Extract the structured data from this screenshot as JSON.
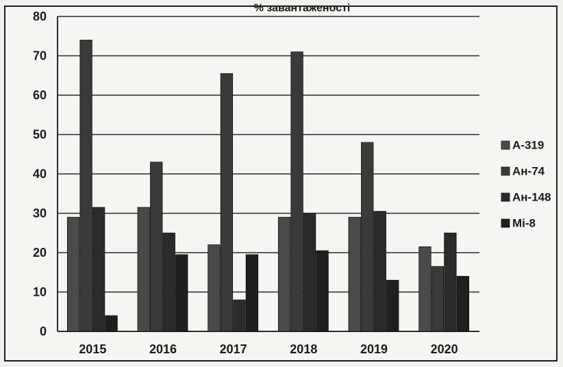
{
  "chart_data": {
    "type": "bar",
    "title": "% завантаженості",
    "xlabel": "",
    "ylabel": "",
    "ylim": [
      0,
      80
    ],
    "yticks": [
      0,
      10,
      20,
      30,
      40,
      50,
      60,
      70,
      80
    ],
    "grid": true,
    "legend_position": "right",
    "categories": [
      "2015",
      "2016",
      "2017",
      "2018",
      "2019",
      "2020"
    ],
    "series": [
      {
        "name": "А-319",
        "values": [
          29,
          31.5,
          22,
          29,
          29,
          21.5
        ],
        "color": "#4a4a4a"
      },
      {
        "name": "Ан-74",
        "values": [
          74,
          43,
          65.5,
          71,
          48,
          16.5
        ],
        "color": "#3a3a3a"
      },
      {
        "name": "Ан-148",
        "values": [
          31.5,
          25,
          8,
          30,
          30.5,
          25
        ],
        "color": "#2b2b2b"
      },
      {
        "name": "Мі-8",
        "values": [
          4,
          19.5,
          19.5,
          20.5,
          13,
          14
        ],
        "color": "#1f1f1f"
      }
    ]
  }
}
